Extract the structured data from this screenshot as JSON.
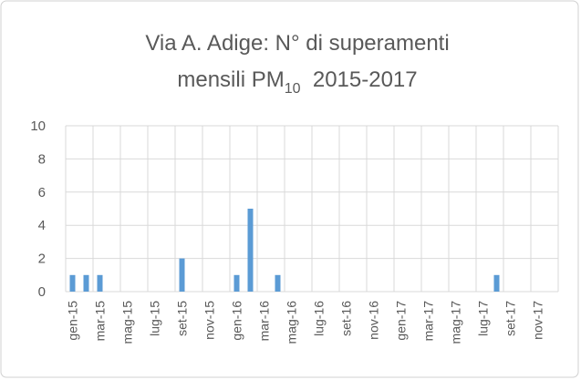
{
  "chart_data": {
    "type": "bar",
    "title": [
      "Via A. Adige: N° di superamenti",
      "mensili  PM",
      "10",
      "  2015-2017"
    ],
    "categories": [
      "gen-15",
      null,
      "mar-15",
      null,
      "mag-15",
      null,
      "lug-15",
      null,
      "set-15",
      null,
      "nov-15",
      null,
      "gen-16",
      null,
      "mar-16",
      null,
      "mag-16",
      null,
      "lug-16",
      null,
      "set-16",
      null,
      "nov-16",
      null,
      "gen-17",
      null,
      "mar-17",
      null,
      "mag-17",
      null,
      "lug-17",
      null,
      "set-17",
      null,
      "nov-17",
      null
    ],
    "values": [
      1,
      1,
      1,
      0,
      0,
      0,
      0,
      0,
      2,
      0,
      0,
      0,
      1,
      5,
      0,
      1,
      0,
      0,
      0,
      0,
      0,
      0,
      0,
      0,
      0,
      0,
      0,
      0,
      0,
      0,
      0,
      1,
      0,
      0,
      0,
      0
    ],
    "color": "#5b9bd5",
    "ylim": [
      0,
      10
    ],
    "yticks": [
      0,
      2,
      4,
      6,
      8,
      10
    ],
    "grid": true
  }
}
